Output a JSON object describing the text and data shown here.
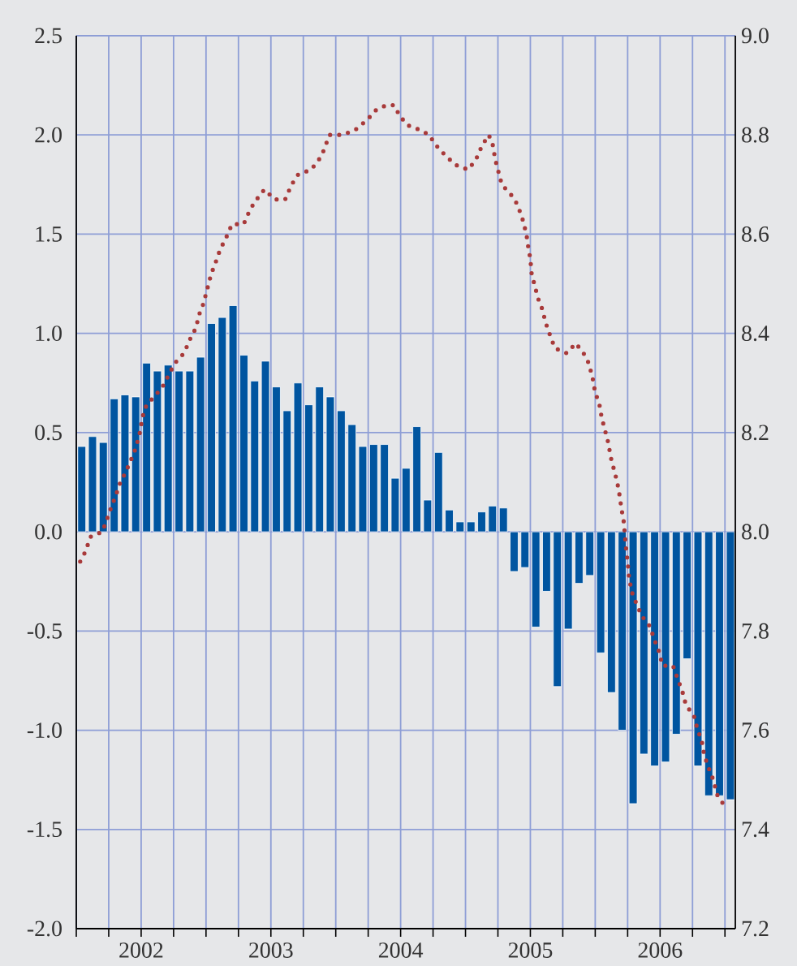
{
  "chart_data": {
    "type": "bar",
    "grid": true,
    "xlim": [
      2002,
      2007.08
    ],
    "xticks": [
      {
        "value": 2002,
        "label": null
      },
      {
        "value": 2002.25,
        "label": null
      },
      {
        "value": 2002.5,
        "label": "2002"
      },
      {
        "value": 2002.75,
        "label": null
      },
      {
        "value": 2003,
        "label": null
      },
      {
        "value": 2003.25,
        "label": null
      },
      {
        "value": 2003.5,
        "label": "2003"
      },
      {
        "value": 2003.75,
        "label": null
      },
      {
        "value": 2004,
        "label": null
      },
      {
        "value": 2004.25,
        "label": null
      },
      {
        "value": 2004.5,
        "label": "2004"
      },
      {
        "value": 2004.75,
        "label": null
      },
      {
        "value": 2005,
        "label": null
      },
      {
        "value": 2005.25,
        "label": null
      },
      {
        "value": 2005.5,
        "label": "2005"
      },
      {
        "value": 2005.75,
        "label": null
      },
      {
        "value": 2006,
        "label": null
      },
      {
        "value": 2006.25,
        "label": null
      },
      {
        "value": 2006.5,
        "label": "2006"
      },
      {
        "value": 2006.75,
        "label": null
      },
      {
        "value": 2007,
        "label": null
      }
    ],
    "ylim": [
      -2,
      2.5
    ],
    "yticks": [
      {
        "value": -2,
        "label": "-2.0"
      },
      -1.5,
      {
        "value": -1,
        "label": "-1.0"
      },
      -0.5,
      {
        "value": 0,
        "label": "0.0"
      },
      0.5,
      {
        "value": 1,
        "label": "1.0"
      },
      1.5,
      {
        "value": 2,
        "label": "2.0"
      },
      2.5
    ],
    "y2lim": [
      7.2,
      9.0
    ],
    "y2ticks": [
      7.2,
      7.4,
      7.6,
      7.8,
      {
        "value": 8,
        "label": "8.0"
      },
      8.2,
      8.4,
      8.6,
      8.8,
      {
        "value": 9,
        "label": "9.0"
      }
    ],
    "series": [
      {
        "color": "#0055a0",
        "x": [
          2002.042,
          2002.125,
          2002.208,
          2002.292,
          2002.375,
          2002.458,
          2002.542,
          2002.625,
          2002.708,
          2002.792,
          2002.875,
          2002.958,
          2003.042,
          2003.125,
          2003.208,
          2003.292,
          2003.375,
          2003.458,
          2003.542,
          2003.625,
          2003.708,
          2003.792,
          2003.875,
          2003.958,
          2004.042,
          2004.125,
          2004.208,
          2004.292,
          2004.375,
          2004.458,
          2004.542,
          2004.625,
          2004.708,
          2004.792,
          2004.875,
          2004.958,
          2005.042,
          2005.125,
          2005.208,
          2005.292,
          2005.375,
          2005.458,
          2005.542,
          2005.625,
          2005.708,
          2005.792,
          2005.875,
          2005.958,
          2006.042,
          2006.125,
          2006.208,
          2006.292,
          2006.375,
          2006.458,
          2006.542,
          2006.625,
          2006.708,
          2006.792,
          2006.875,
          2006.958,
          2007.042
        ],
        "values": [
          0.43,
          0.48,
          0.45,
          0.67,
          0.69,
          0.68,
          0.85,
          0.81,
          0.84,
          0.81,
          0.81,
          0.88,
          1.05,
          1.08,
          1.14,
          0.89,
          0.76,
          0.86,
          0.73,
          0.61,
          0.75,
          0.64,
          0.73,
          0.68,
          0.61,
          0.54,
          0.43,
          0.44,
          0.44,
          0.27,
          0.32,
          0.53,
          0.16,
          0.4,
          0.11,
          0.05,
          0.05,
          0.1,
          0.13,
          0.12,
          -0.2,
          -0.18,
          -0.48,
          -0.3,
          -0.78,
          -0.49,
          -0.26,
          -0.22,
          -0.61,
          -0.81,
          -1.0,
          -1.37,
          -1.12,
          -1.18,
          -1.16,
          -1.02,
          -0.64,
          -1.18,
          -1.33,
          -1.33,
          -1.35
        ]
      },
      {
        "type": "line",
        "axis": "y2",
        "color": "#a83a3a",
        "line_style": "dotted",
        "x": [
          2002.03,
          2002.07,
          2002.11,
          2002.2,
          2002.23,
          2002.27,
          2002.3,
          2002.34,
          2002.38,
          2002.43,
          2002.46,
          2002.49,
          2002.51,
          2002.53,
          2002.59,
          2002.66,
          2002.72,
          2002.76,
          2002.83,
          2002.88,
          2002.92,
          2002.95,
          2002.98,
          2003.01,
          2003.04,
          2003.07,
          2003.11,
          2003.15,
          2003.2,
          2003.29,
          2003.34,
          2003.39,
          2003.45,
          2003.53,
          2003.61,
          2003.66,
          2003.71,
          2003.81,
          2003.87,
          2003.91,
          2003.95,
          2004.05,
          2004.15,
          2004.24,
          2004.31,
          2004.39,
          2004.45,
          2004.49,
          2004.55,
          2004.65,
          2004.72,
          2004.77,
          2004.84,
          2004.92,
          2005.02,
          2005.08,
          2005.13,
          2005.18,
          2005.21,
          2005.23,
          2005.25,
          2005.28,
          2005.35,
          2005.4,
          2005.44,
          2005.47,
          2005.48,
          2005.5,
          2005.51,
          2005.53,
          2005.56,
          2005.59,
          2005.62,
          2005.66,
          2005.69,
          2005.78,
          2005.85,
          2005.91,
          2005.95,
          2005.98,
          2006.0,
          2006.03,
          2006.05,
          2006.08,
          2006.1,
          2006.12,
          2006.15,
          2006.17,
          2006.19,
          2006.2,
          2006.22,
          2006.23,
          2006.24,
          2006.25,
          2006.26,
          2006.28,
          2006.31,
          2006.36,
          2006.42,
          2006.46,
          2006.49,
          2006.52,
          2006.6,
          2006.64,
          2006.67,
          2006.7,
          2006.76,
          2006.79,
          2006.82,
          2006.84,
          2006.88,
          2006.91,
          2006.94,
          2006.99
        ],
        "values": [
          7.94,
          7.96,
          7.99,
          8.0,
          8.02,
          8.05,
          8.07,
          8.1,
          8.12,
          8.15,
          8.17,
          8.2,
          8.23,
          8.25,
          8.27,
          8.29,
          8.32,
          8.34,
          8.36,
          8.39,
          8.41,
          8.44,
          8.46,
          8.49,
          8.52,
          8.54,
          8.57,
          8.59,
          8.62,
          8.62,
          8.65,
          8.67,
          8.69,
          8.67,
          8.67,
          8.7,
          8.72,
          8.73,
          8.75,
          8.77,
          8.8,
          8.8,
          8.81,
          8.83,
          8.85,
          8.86,
          8.86,
          8.84,
          8.82,
          8.81,
          8.8,
          8.78,
          8.76,
          8.74,
          8.73,
          8.75,
          8.78,
          8.8,
          8.78,
          8.75,
          8.73,
          8.7,
          8.68,
          8.66,
          8.63,
          8.6,
          8.58,
          8.55,
          8.52,
          8.5,
          8.47,
          8.45,
          8.42,
          8.39,
          8.37,
          8.36,
          8.38,
          8.36,
          8.34,
          8.31,
          8.28,
          8.26,
          8.23,
          8.2,
          8.18,
          8.15,
          8.12,
          8.1,
          8.07,
          8.05,
          8.02,
          7.99,
          7.96,
          7.94,
          7.91,
          7.88,
          7.86,
          7.83,
          7.81,
          7.78,
          7.76,
          7.73,
          7.73,
          7.7,
          7.68,
          7.65,
          7.63,
          7.6,
          7.58,
          7.55,
          7.52,
          7.5,
          7.47,
          7.45
        ]
      }
    ]
  }
}
